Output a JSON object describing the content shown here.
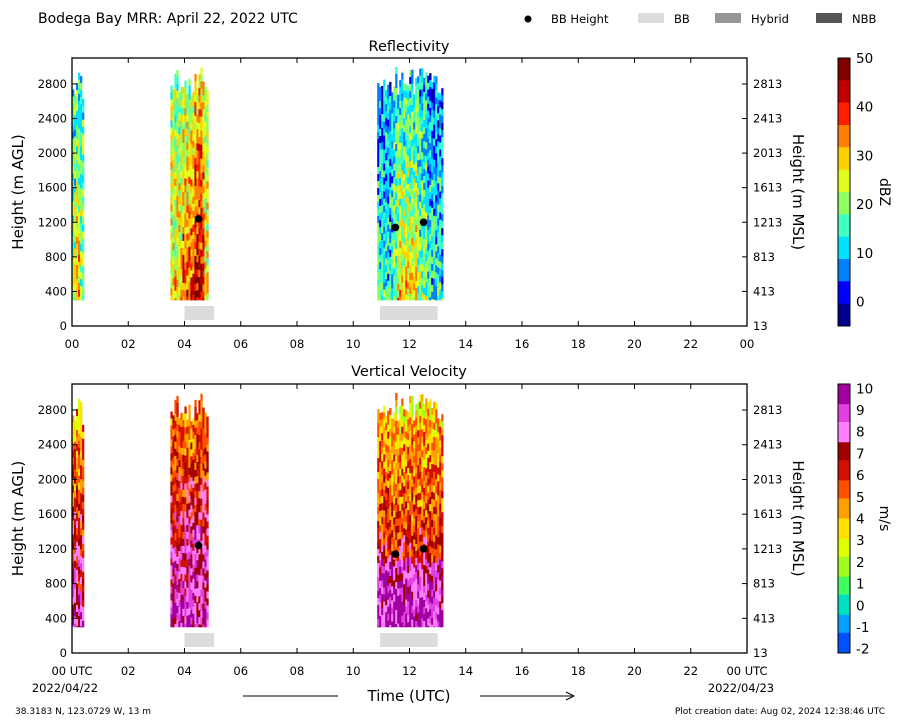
{
  "page": {
    "title": "Bodega Bay MRR:  April 22, 2022 UTC",
    "legend": [
      {
        "label": "BB Height",
        "kind": "dot",
        "color": "#000000"
      },
      {
        "label": "BB",
        "kind": "box",
        "color": "#dcdcdc"
      },
      {
        "label": "Hybrid",
        "kind": "box",
        "color": "#969696"
      },
      {
        "label": "NBB",
        "kind": "box",
        "color": "#555555"
      }
    ],
    "footer_left": "38.3183 N, 123.0729 W, 13 m",
    "footer_right": "Plot creation date: Aug 02, 2024 12:38:46 UTC",
    "time_axis_label": "Time (UTC)",
    "start_date": "2022/04/22",
    "end_date": "2022/04/23"
  },
  "chart_data": [
    {
      "type": "heatmap",
      "title": "Reflectivity",
      "xlabel": "",
      "ylabel": "Height (m AGL)",
      "ylabel_right": "Height (m MSL)",
      "x_ticks": [
        "00",
        "02",
        "04",
        "06",
        "08",
        "10",
        "12",
        "14",
        "16",
        "18",
        "20",
        "22",
        "00"
      ],
      "y_ticks": [
        0,
        400,
        800,
        1200,
        1600,
        2000,
        2400,
        2800
      ],
      "y_ticks_right": [
        13,
        413,
        813,
        1213,
        1613,
        2013,
        2413,
        2813
      ],
      "xlim": [
        0,
        24
      ],
      "ylim": [
        0,
        3100
      ],
      "colorbar": {
        "label": "dBZ",
        "ticks": [
          0,
          10,
          20,
          30,
          40,
          50
        ],
        "range": [
          -5,
          50
        ],
        "colors": [
          "#00008f",
          "#0000ff",
          "#0080ff",
          "#00e0ff",
          "#40ffc0",
          "#90ff60",
          "#e0ff20",
          "#ffd000",
          "#ff8000",
          "#ff2000",
          "#c00000",
          "#800000"
        ]
      },
      "precip_periods": [
        {
          "start": 0.0,
          "end": 0.4,
          "top": 2950,
          "bottom": 300,
          "level": 0.35
        },
        {
          "start": 3.5,
          "end": 4.85,
          "top": 3000,
          "bottom": 300,
          "level": 0.45
        },
        {
          "start": 10.85,
          "end": 13.15,
          "top": 3000,
          "bottom": 300,
          "level": 0.3
        }
      ],
      "bb_height": [
        {
          "time": 4.5,
          "height": 1240
        },
        {
          "time": 11.5,
          "height": 1140
        },
        {
          "time": 12.5,
          "height": 1200
        }
      ],
      "bb_type_bars": [
        {
          "start": 4.0,
          "end": 5.05,
          "type": "BB"
        },
        {
          "start": 10.95,
          "end": 13.0,
          "type": "BB"
        }
      ]
    },
    {
      "type": "heatmap",
      "title": "Vertical Velocity",
      "xlabel": "Time (UTC)",
      "ylabel": "Height (m AGL)",
      "ylabel_right": "Height (m MSL)",
      "x_ticks": [
        "00 UTC",
        "02",
        "04",
        "06",
        "08",
        "10",
        "12",
        "14",
        "16",
        "18",
        "20",
        "22",
        "00 UTC"
      ],
      "y_ticks": [
        0,
        400,
        800,
        1200,
        1600,
        2000,
        2400,
        2800
      ],
      "y_ticks_right": [
        13,
        413,
        813,
        1213,
        1613,
        2013,
        2413,
        2813
      ],
      "xlim": [
        0,
        24
      ],
      "ylim": [
        0,
        3100
      ],
      "colorbar": {
        "label": "m/s",
        "ticks": [
          -2,
          -1,
          0,
          1,
          2,
          3,
          4,
          5,
          6,
          7,
          8,
          9,
          10
        ],
        "range": [
          -2.2,
          10.2
        ],
        "colors": [
          "#0050ff",
          "#00a0ff",
          "#00e0c0",
          "#40ff60",
          "#a0ff20",
          "#e0ff00",
          "#ffe000",
          "#ffa000",
          "#ff5000",
          "#d01000",
          "#a00000",
          "#ff80ff",
          "#e040e0",
          "#a000a0"
        ]
      },
      "precip_periods": [
        {
          "start": 0.0,
          "end": 0.4,
          "top": 2950,
          "bottom": 300,
          "level": 0.5
        },
        {
          "start": 3.5,
          "end": 4.85,
          "top": 3000,
          "bottom": 300,
          "level": 0.55
        },
        {
          "start": 10.85,
          "end": 13.15,
          "top": 3000,
          "bottom": 300,
          "level": 0.45
        }
      ],
      "bb_height": [
        {
          "time": 4.5,
          "height": 1240
        },
        {
          "time": 11.5,
          "height": 1140
        },
        {
          "time": 12.5,
          "height": 1200
        }
      ],
      "bb_type_bars": [
        {
          "start": 4.0,
          "end": 5.05,
          "type": "BB"
        },
        {
          "start": 10.95,
          "end": 13.0,
          "type": "BB"
        }
      ]
    }
  ]
}
